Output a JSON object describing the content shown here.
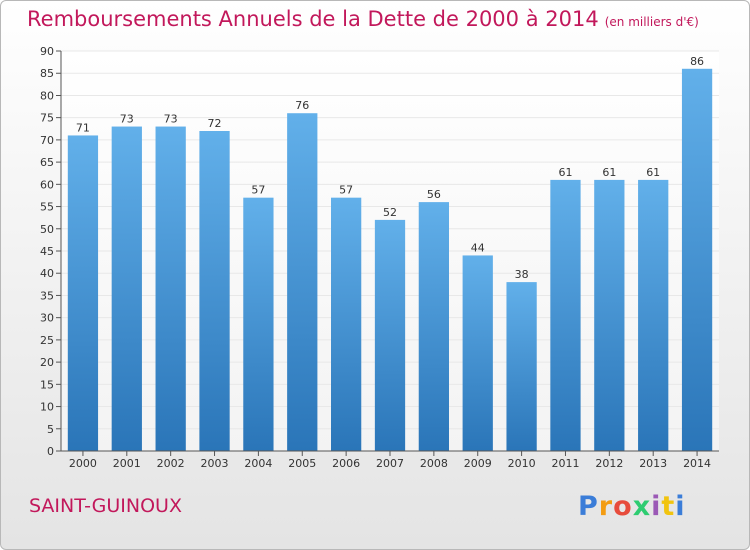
{
  "header": {
    "title": "Remboursements Annuels de la Dette de 2000 à 2014",
    "unit": "(en milliers d'€)"
  },
  "footer": {
    "commune": "SAINT-GUINOUX",
    "brand": "Proxiti",
    "brand_letters": [
      {
        "ch": "P",
        "color": "#3b7dd8"
      },
      {
        "ch": "r",
        "color": "#f39c12"
      },
      {
        "ch": "o",
        "color": "#e74c3c"
      },
      {
        "ch": "x",
        "color": "#2ecc71"
      },
      {
        "ch": "i",
        "color": "#9b59b6"
      },
      {
        "ch": "t",
        "color": "#f1c40f"
      },
      {
        "ch": "i",
        "color": "#3b7dd8"
      }
    ]
  },
  "colors": {
    "bar_top": "#62b0ea",
    "bar_bottom": "#2a75b8",
    "title": "#c2185b",
    "grid": "#e8e8e8",
    "axis": "#555555"
  },
  "chart_data": {
    "type": "bar",
    "title": "Remboursements Annuels de la Dette de 2000 à 2014",
    "xlabel": "",
    "ylabel": "",
    "categories": [
      "2000",
      "2001",
      "2002",
      "2003",
      "2004",
      "2005",
      "2006",
      "2007",
      "2008",
      "2009",
      "2010",
      "2011",
      "2012",
      "2013",
      "2014"
    ],
    "values": [
      71,
      73,
      73,
      72,
      57,
      76,
      57,
      52,
      56,
      44,
      38,
      61,
      61,
      61,
      86
    ],
    "ylim": [
      0,
      90
    ],
    "ytick_step": 5,
    "grid": true,
    "legend": "none"
  }
}
